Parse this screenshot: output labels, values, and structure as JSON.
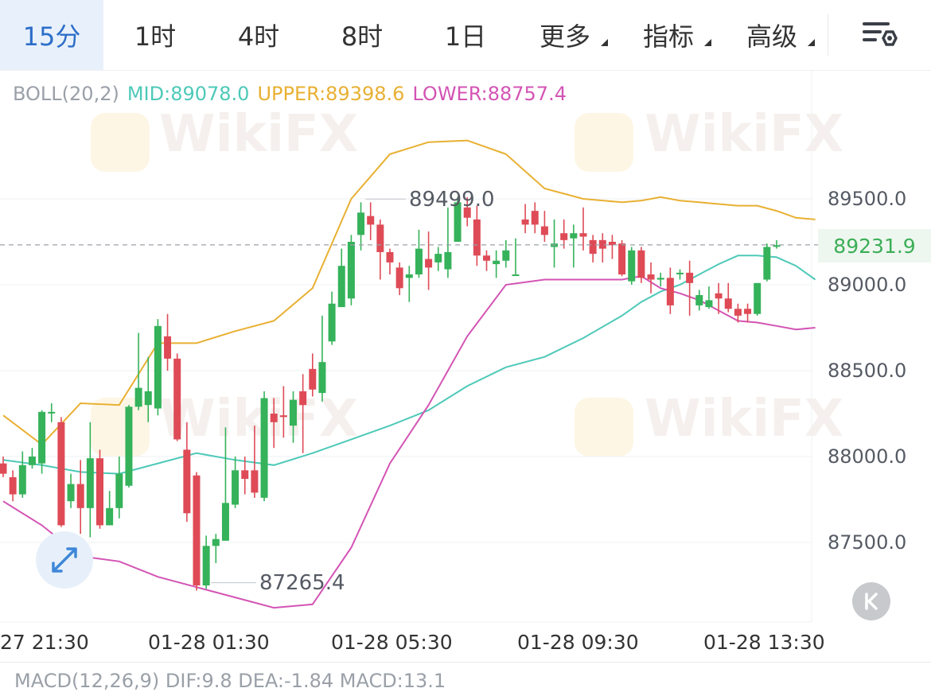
{
  "tabs": [
    {
      "label": "15分",
      "active": true
    },
    {
      "label": "1时"
    },
    {
      "label": "4时"
    },
    {
      "label": "8时"
    },
    {
      "label": "1日"
    },
    {
      "label": "更多",
      "dropdown": true
    },
    {
      "label": "指标",
      "dropdown": true
    },
    {
      "label": "高级",
      "dropdown": true
    }
  ],
  "settings_icon": "chart-settings-icon",
  "legend": {
    "name": "BOLL(20,2)",
    "mid": "MID:89078.0",
    "upper": "UPPER:89398.6",
    "lower": "LOWER:88757.4"
  },
  "colors": {
    "mid": "#4ec9b8",
    "upper": "#e8b033",
    "lower": "#d354b4",
    "up": "#35b25a",
    "down": "#de4b56",
    "accent": "#2d6ec9"
  },
  "price_axis": [
    "89500.0",
    "89000.0",
    "88500.0",
    "88000.0",
    "87500.0"
  ],
  "current_price": "89231.9",
  "high_marker": "89499.0",
  "low_marker": "87265.4",
  "time_axis": [
    "27 21:30",
    "01-28 01:30",
    "01-28 05:30",
    "01-28 09:30",
    "01-28 13:30"
  ],
  "watermark": "WikiFX",
  "macd_partial": "MACD(12,26,9)  DIF:9.8  DEA:-1.84  MACD:13.1",
  "chart_data": {
    "type": "candlestick",
    "ylim": [
      87150,
      89800
    ],
    "x": [
      "27 21:30",
      "01-28 01:30",
      "01-28 05:30",
      "01-28 09:30",
      "01-28 13:30"
    ],
    "candles": [
      [
        87960,
        87900,
        88000,
        87880
      ],
      [
        87880,
        87780,
        87920,
        87740
      ],
      [
        87780,
        87950,
        88030,
        87760
      ],
      [
        87950,
        88000,
        88050,
        87930
      ],
      [
        87960,
        88260,
        88270,
        87900
      ],
      [
        88260,
        88260,
        88310,
        88200
      ],
      [
        88200,
        87600,
        88230,
        87590
      ],
      [
        87740,
        87840,
        87900,
        87700
      ],
      [
        87840,
        87700,
        87980,
        87550
      ],
      [
        87700,
        87990,
        88200,
        87530
      ],
      [
        87990,
        87600,
        88040,
        87580
      ],
      [
        87600,
        87700,
        87800,
        87600
      ],
      [
        87700,
        87900,
        88000,
        87640
      ],
      [
        87830,
        88290,
        88300,
        87820
      ],
      [
        88290,
        88400,
        88720,
        88270
      ],
      [
        88300,
        88380,
        88580,
        88200
      ],
      [
        88280,
        88760,
        88800,
        88240
      ],
      [
        88700,
        88570,
        88830,
        88500
      ],
      [
        88570,
        88100,
        88600,
        88090
      ],
      [
        88040,
        87670,
        88200,
        87620
      ],
      [
        87890,
        87250,
        87910,
        87220
      ],
      [
        87250,
        87480,
        87540,
        87230
      ],
      [
        87480,
        87520,
        87550,
        87380
      ],
      [
        87510,
        87730,
        88170,
        87660
      ],
      [
        87720,
        87920,
        88000,
        87700
      ],
      [
        87920,
        87870,
        88000,
        87780
      ],
      [
        87920,
        87790,
        88180,
        87760
      ],
      [
        87760,
        88340,
        88380,
        87740
      ],
      [
        88250,
        88200,
        88340,
        88050
      ],
      [
        88240,
        88230,
        88410,
        88110
      ],
      [
        88180,
        88330,
        88380,
        88080
      ],
      [
        88380,
        88300,
        88480,
        88020
      ],
      [
        88510,
        88390,
        88600,
        88350
      ],
      [
        88370,
        88550,
        88820,
        88320
      ],
      [
        88670,
        88890,
        88960,
        88650
      ],
      [
        88870,
        89110,
        89210,
        88870
      ],
      [
        88920,
        89250,
        89290,
        88880
      ],
      [
        89290,
        89420,
        89480,
        89200
      ],
      [
        89400,
        89350,
        89480,
        89260
      ],
      [
        89350,
        89190,
        89380,
        89030
      ],
      [
        89190,
        89130,
        89210,
        89060
      ],
      [
        89100,
        88980,
        89130,
        88940
      ],
      [
        89040,
        89060,
        89110,
        88900
      ],
      [
        89060,
        89210,
        89320,
        89040
      ],
      [
        89150,
        89100,
        89310,
        88970
      ],
      [
        89130,
        89180,
        89220,
        89080
      ],
      [
        89090,
        89190,
        89450,
        89040
      ],
      [
        89250,
        89480,
        89510,
        89250
      ],
      [
        89450,
        89390,
        89510,
        89340
      ],
      [
        89380,
        89170,
        89460,
        89110
      ],
      [
        89170,
        89140,
        89200,
        89080
      ],
      [
        89120,
        89140,
        89200,
        89040
      ],
      [
        89140,
        89200,
        89260,
        89100
      ],
      [
        89060,
        89060,
        89270,
        89060
      ],
      [
        89380,
        89350,
        89470,
        89300
      ],
      [
        89430,
        89350,
        89480,
        89300
      ],
      [
        89340,
        89290,
        89430,
        89250
      ],
      [
        89220,
        89240,
        89380,
        89100
      ],
      [
        89300,
        89260,
        89380,
        89210
      ],
      [
        89270,
        89300,
        89350,
        89100
      ],
      [
        89300,
        89280,
        89450,
        89200
      ],
      [
        89260,
        89180,
        89290,
        89130
      ],
      [
        89260,
        89210,
        89300,
        89130
      ],
      [
        89250,
        89230,
        89290,
        89150
      ],
      [
        89240,
        89060,
        89260,
        89050
      ],
      [
        89020,
        89200,
        89220,
        89000
      ],
      [
        89200,
        89040,
        89220,
        89010
      ],
      [
        89060,
        89030,
        89130,
        88950
      ],
      [
        89030,
        89040,
        89070,
        88990
      ],
      [
        89040,
        88880,
        89100,
        88830
      ],
      [
        89070,
        89070,
        89090,
        89030
      ],
      [
        89070,
        89010,
        89140,
        88820
      ],
      [
        88880,
        88940,
        88970,
        88850
      ],
      [
        88870,
        88910,
        88990,
        88860
      ],
      [
        88950,
        88920,
        89010,
        88830
      ],
      [
        88920,
        88860,
        89010,
        88840
      ],
      [
        88860,
        88820,
        88890,
        88780
      ],
      [
        88860,
        88830,
        88890,
        88780
      ],
      [
        88830,
        89010,
        89010,
        88820
      ],
      [
        89030,
        89220,
        89240,
        89020
      ],
      [
        89230,
        89230,
        89260,
        89210
      ]
    ],
    "mid": [
      [
        0,
        87980
      ],
      [
        4,
        87950
      ],
      [
        8,
        87910
      ],
      [
        12,
        87900
      ],
      [
        16,
        87960
      ],
      [
        20,
        88020
      ],
      [
        24,
        87980
      ],
      [
        28,
        87950
      ],
      [
        32,
        88020
      ],
      [
        36,
        88100
      ],
      [
        40,
        88180
      ],
      [
        44,
        88270
      ],
      [
        48,
        88410
      ],
      [
        52,
        88520
      ],
      [
        56,
        88580
      ],
      [
        60,
        88690
      ],
      [
        64,
        88820
      ],
      [
        66,
        88900
      ],
      [
        68,
        88960
      ],
      [
        70,
        89000
      ],
      [
        72,
        89060
      ],
      [
        74,
        89120
      ],
      [
        76,
        89170
      ],
      [
        78,
        89170
      ],
      [
        80,
        89160
      ],
      [
        82,
        89110
      ],
      [
        84,
        89030
      ]
    ],
    "upper": [
      [
        0,
        88240
      ],
      [
        4,
        88070
      ],
      [
        8,
        88310
      ],
      [
        12,
        88300
      ],
      [
        16,
        88660
      ],
      [
        20,
        88660
      ],
      [
        24,
        88730
      ],
      [
        28,
        88790
      ],
      [
        32,
        88980
      ],
      [
        36,
        89500
      ],
      [
        40,
        89760
      ],
      [
        44,
        89830
      ],
      [
        48,
        89840
      ],
      [
        52,
        89760
      ],
      [
        56,
        89560
      ],
      [
        60,
        89500
      ],
      [
        64,
        89480
      ],
      [
        66,
        89490
      ],
      [
        68,
        89510
      ],
      [
        70,
        89490
      ],
      [
        72,
        89480
      ],
      [
        74,
        89470
      ],
      [
        76,
        89460
      ],
      [
        78,
        89460
      ],
      [
        80,
        89430
      ],
      [
        82,
        89390
      ],
      [
        84,
        89380
      ]
    ],
    "lower": [
      [
        0,
        87740
      ],
      [
        4,
        87600
      ],
      [
        8,
        87420
      ],
      [
        12,
        87390
      ],
      [
        16,
        87300
      ],
      [
        20,
        87240
      ],
      [
        24,
        87180
      ],
      [
        28,
        87120
      ],
      [
        32,
        87140
      ],
      [
        36,
        87470
      ],
      [
        40,
        87960
      ],
      [
        44,
        88300
      ],
      [
        48,
        88700
      ],
      [
        52,
        89000
      ],
      [
        56,
        89030
      ],
      [
        60,
        89030
      ],
      [
        64,
        89030
      ],
      [
        66,
        89050
      ],
      [
        68,
        88980
      ],
      [
        70,
        88950
      ],
      [
        72,
        88910
      ],
      [
        74,
        88850
      ],
      [
        76,
        88790
      ],
      [
        78,
        88780
      ],
      [
        80,
        88760
      ],
      [
        82,
        88740
      ],
      [
        84,
        88750
      ]
    ]
  }
}
